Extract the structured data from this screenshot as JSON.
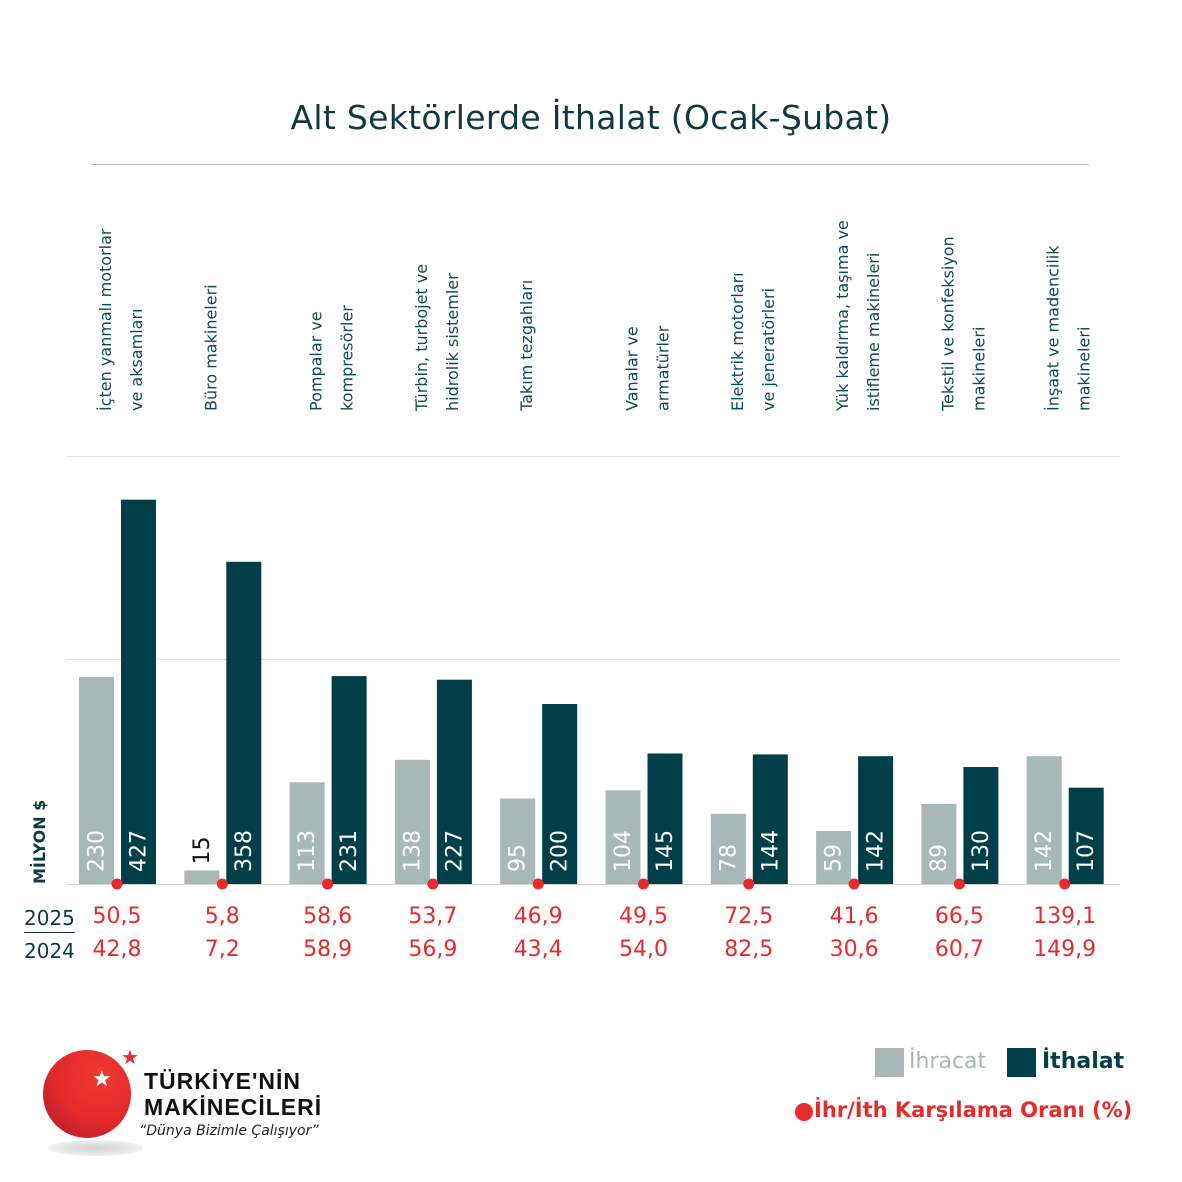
{
  "chart_data": {
    "type": "bar",
    "title": "Alt Sektörlerde İthalat (Ocak-Şubat)",
    "ylabel": "MİLYON $",
    "categories": [
      [
        "İçten yanmalı motorlar",
        "ve aksamları"
      ],
      [
        "Büro makineleri"
      ],
      [
        "Pompalar ve",
        "kompresörler"
      ],
      [
        "Türbin, turbojet ve",
        "hidrolik sistemler"
      ],
      [
        "Takım tezgahları"
      ],
      [
        "Vanalar ve",
        "armatürler"
      ],
      [
        "Elektrik motorları",
        "ve jeneratörleri"
      ],
      [
        "Yük kaldırma, taşıma ve",
        "istifleme makineleri"
      ],
      [
        "Tekstil ve konfeksiyon",
        "makineleri"
      ],
      [
        "İnşaat ve madencilik",
        "makineleri"
      ]
    ],
    "series": [
      {
        "name": "İhracat",
        "color": "#a8b8b7",
        "values": [
          230,
          15,
          113,
          138,
          95,
          104,
          78,
          59,
          89,
          142
        ]
      },
      {
        "name": "İthalat",
        "color": "#003f47",
        "values": [
          427,
          358,
          231,
          227,
          200,
          145,
          144,
          142,
          130,
          107
        ]
      }
    ],
    "coverage_ratio": {
      "name": "İhr/İth Karşılama Oranı (%)",
      "color": "#e52b2b",
      "rows": [
        {
          "year": "2025",
          "values": [
            "50,5",
            "5,8",
            "58,6",
            "53,7",
            "46,9",
            "49,5",
            "72,5",
            "41,6",
            "66,5",
            "139,1"
          ]
        },
        {
          "year": "2024",
          "values": [
            "42,8",
            "7,2",
            "58,9",
            "56,9",
            "43,4",
            "54,0",
            "82,5",
            "30,6",
            "60,7",
            "149,9"
          ]
        }
      ]
    },
    "grid": true,
    "legend_position": "bottom-right"
  },
  "logo": {
    "name": "TÜRKİYE'NİN MAKİNECİLERİ",
    "slogan": "“Dünya Bizimle Çalışıyor”"
  }
}
